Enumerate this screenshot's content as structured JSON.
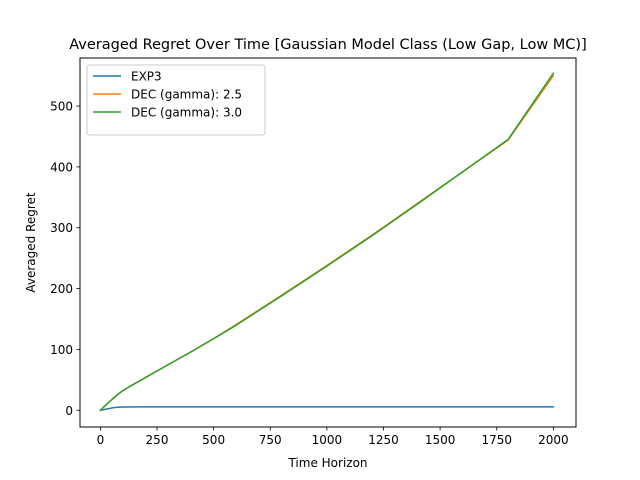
{
  "chart_data": {
    "type": "line",
    "title": "Averaged Regret Over Time [Gaussian Model Class (Low Gap, Low MC)]",
    "xlabel": "Time Horizon",
    "ylabel": "Averaged Regret",
    "xlim": [
      -90,
      2100
    ],
    "ylim": [
      -27.5,
      579
    ],
    "xticks": [
      0,
      250,
      500,
      750,
      1000,
      1250,
      1500,
      1750,
      2000
    ],
    "yticks": [
      0,
      100,
      200,
      300,
      400,
      500
    ],
    "legend_position": "top-left",
    "grid": false,
    "series": [
      {
        "name": "EXP3",
        "color": "#1f77b4",
        "x": [
          0,
          10,
          20,
          30,
          40,
          50,
          60,
          70,
          80,
          90,
          100,
          150,
          200,
          500,
          1000,
          1500,
          2000
        ],
        "y": [
          0,
          0.6,
          1.4,
          2.2,
          3,
          3.7,
          4.3,
          4.7,
          5,
          5.2,
          5.4,
          5.5,
          5.5,
          5.5,
          5.5,
          5.5,
          5.5
        ]
      },
      {
        "name": "DEC (gamma): 2.5",
        "color": "#ff7f0e",
        "x": [
          0,
          10,
          25,
          50,
          75,
          100,
          150,
          200,
          250,
          300,
          400,
          500,
          600,
          800,
          1000,
          1200,
          1400,
          1600,
          1800,
          2000
        ],
        "y": [
          0,
          3.5,
          9,
          17.5,
          25.5,
          32.5,
          43.5,
          54,
          64.5,
          75,
          96,
          118,
          141,
          189,
          238,
          288,
          340,
          392,
          444,
          550
        ]
      },
      {
        "name": "DEC (gamma): 3.0",
        "color": "#2ca02c",
        "x": [
          0,
          10,
          25,
          50,
          75,
          100,
          150,
          200,
          250,
          300,
          400,
          500,
          600,
          800,
          1000,
          1200,
          1400,
          1600,
          1800,
          2000
        ],
        "y": [
          0,
          3.5,
          9,
          17.5,
          25.5,
          32.5,
          43.5,
          54,
          64.5,
          75,
          96,
          117.5,
          140,
          188,
          237,
          287,
          339,
          392,
          445,
          554
        ]
      }
    ]
  }
}
